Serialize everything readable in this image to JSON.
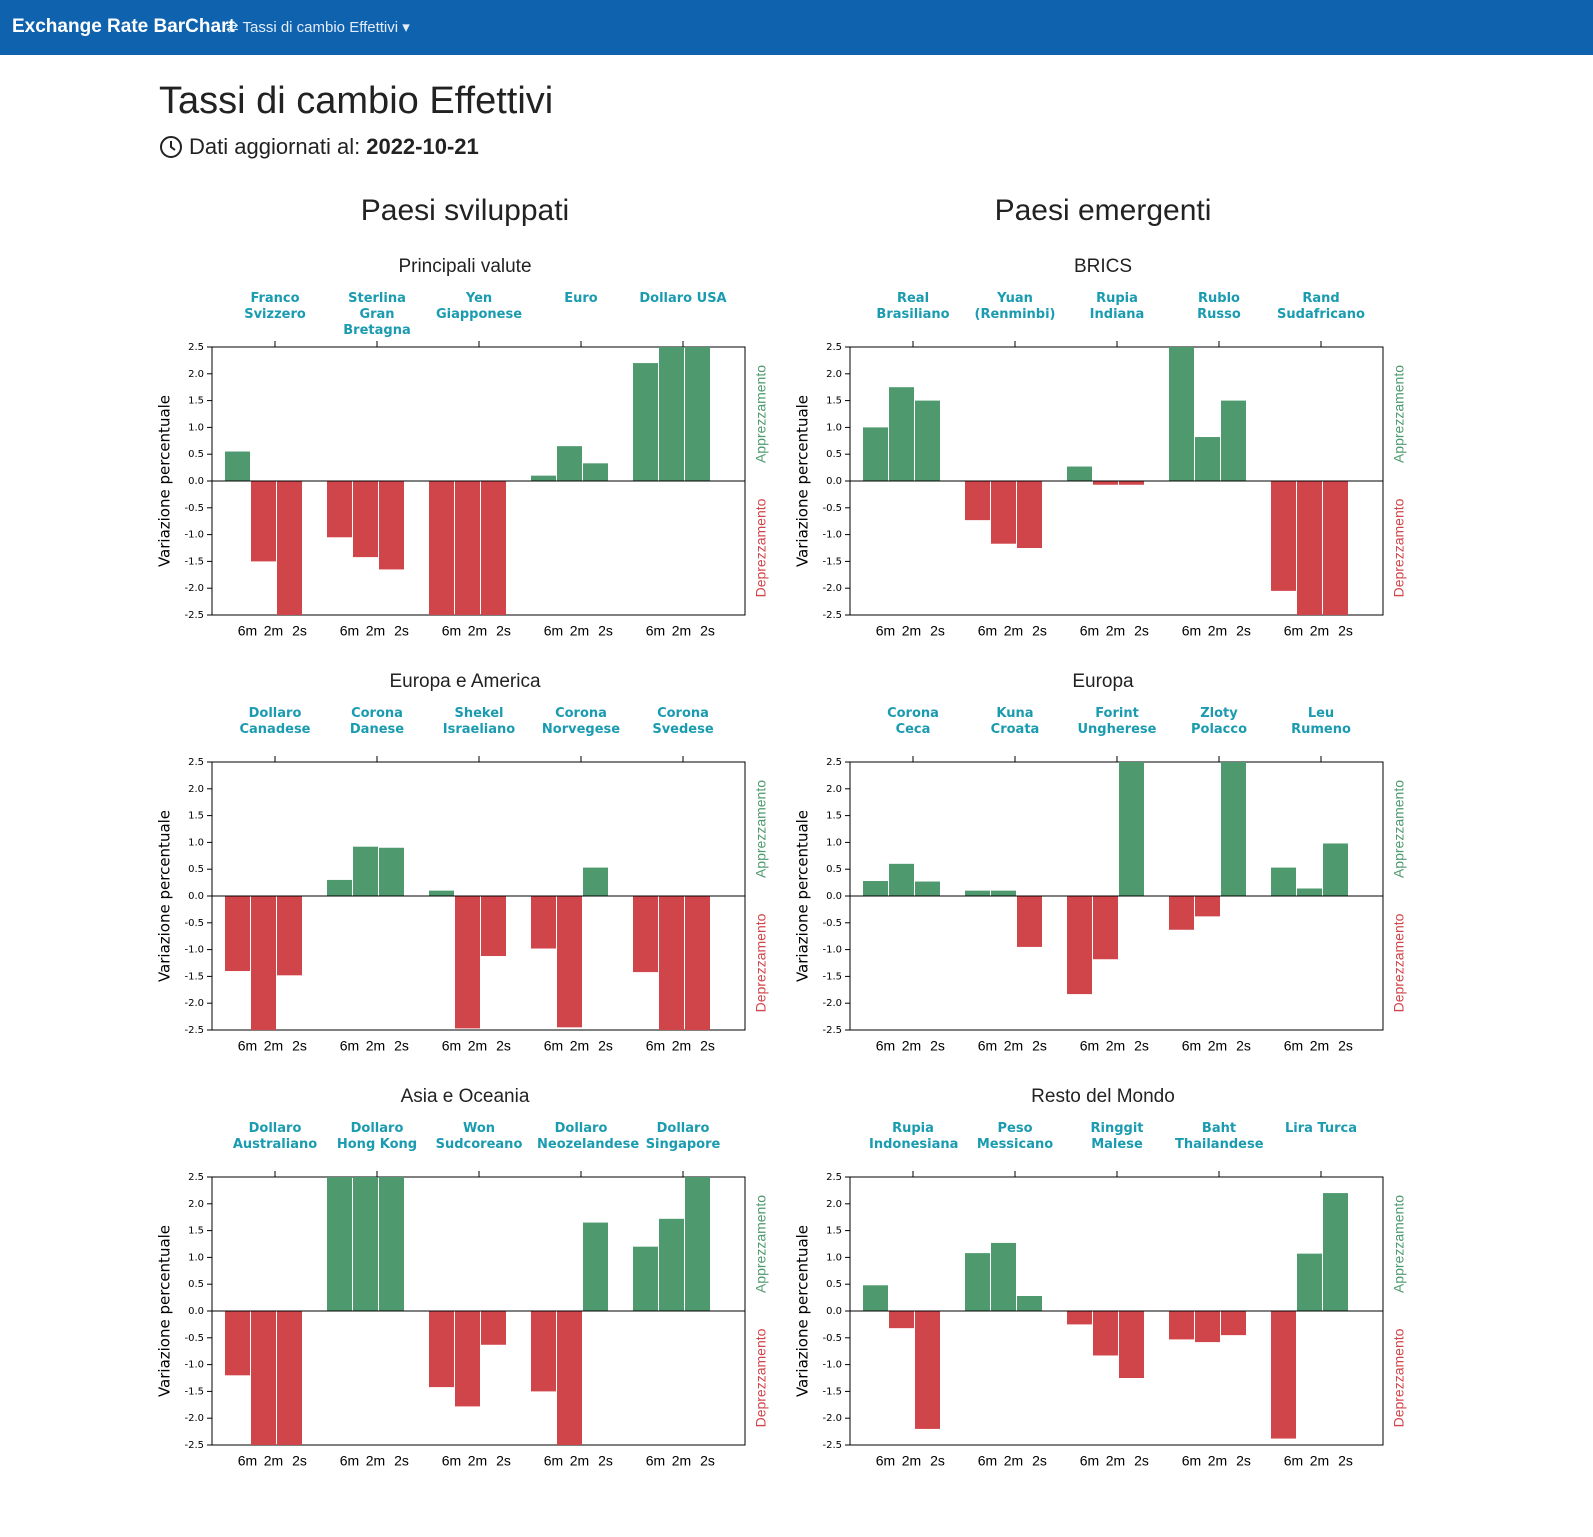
{
  "navbar": {
    "brand": "Exchange Rate BarChart",
    "menu": "Tassi di cambio Effettivi"
  },
  "header": {
    "title": "Tassi di cambio Effettivi",
    "updated_label": "Dati aggiornati al:",
    "updated_date": "2022-10-21"
  },
  "columns": [
    "Paesi sviluppati",
    "Paesi emergenti"
  ],
  "chart_data": [
    {
      "type": "bar",
      "title": "Principali valute",
      "ylabel": "Variazione percentuale",
      "annotations": [
        "Apprezzamento",
        "Deprezzamento"
      ],
      "positive_color": "#4e9a6e",
      "negative_color": "#d0454a",
      "ylim": [
        -2.5,
        2.5
      ],
      "yticks": [
        2.5,
        {
          "value": 2,
          "label": "2.0"
        },
        1.5,
        {
          "value": 1,
          "label": "1.0"
        },
        0.5,
        {
          "value": 0,
          "label": "0.0"
        },
        -0.5,
        {
          "value": -1,
          "label": "-1.0"
        },
        -1.5,
        {
          "value": -2,
          "label": "-2.0"
        },
        -2.5
      ],
      "categories": [
        "Franco Svizzero",
        "Sterlina Gran Bretagna",
        "Yen Giapponese",
        "Euro",
        "Dollaro USA"
      ],
      "series": [
        {
          "name": "6m",
          "values": [
            0.55,
            -1.05,
            -2.5,
            0.1,
            2.2
          ]
        },
        {
          "name": "2m",
          "values": [
            -1.5,
            -1.42,
            -2.5,
            0.65,
            2.5
          ]
        },
        {
          "name": "2s",
          "values": [
            -2.5,
            -1.65,
            -2.5,
            0.33,
            2.5
          ]
        }
      ]
    },
    {
      "type": "bar",
      "title": "BRICS",
      "ylabel": "Variazione percentuale",
      "annotations": [
        "Apprezzamento",
        "Deprezzamento"
      ],
      "positive_color": "#4e9a6e",
      "negative_color": "#d0454a",
      "ylim": [
        -2.5,
        2.5
      ],
      "yticks": [
        2.5,
        {
          "value": 2,
          "label": "2.0"
        },
        1.5,
        {
          "value": 1,
          "label": "1.0"
        },
        0.5,
        {
          "value": 0,
          "label": "0.0"
        },
        -0.5,
        {
          "value": -1,
          "label": "-1.0"
        },
        -1.5,
        {
          "value": -2,
          "label": "-2.0"
        },
        -2.5
      ],
      "categories": [
        "Real Brasiliano",
        "Yuan (Renminbi)",
        "Rupia Indiana",
        "Rublo Russo",
        "Rand Sudafricano"
      ],
      "series": [
        {
          "name": "6m",
          "values": [
            1.0,
            -0.73,
            0.27,
            2.5,
            -2.05
          ]
        },
        {
          "name": "2m",
          "values": [
            1.75,
            -1.17,
            -0.07,
            0.82,
            -2.5
          ]
        },
        {
          "name": "2s",
          "values": [
            1.5,
            -1.25,
            -0.07,
            1.5,
            -2.5
          ]
        }
      ]
    },
    {
      "type": "bar",
      "title": "Europa e America",
      "ylabel": "Variazione percentuale",
      "annotations": [
        "Apprezzamento",
        "Deprezzamento"
      ],
      "positive_color": "#4e9a6e",
      "negative_color": "#d0454a",
      "ylim": [
        -2.5,
        2.5
      ],
      "yticks": [
        2.5,
        {
          "value": 2,
          "label": "2.0"
        },
        1.5,
        {
          "value": 1,
          "label": "1.0"
        },
        0.5,
        {
          "value": 0,
          "label": "0.0"
        },
        -0.5,
        {
          "value": -1,
          "label": "-1.0"
        },
        -1.5,
        {
          "value": -2,
          "label": "-2.0"
        },
        -2.5
      ],
      "categories": [
        "Dollaro Canadese",
        "Corona Danese",
        "Shekel Israeliano",
        "Corona Norvegese",
        "Corona Svedese"
      ],
      "series": [
        {
          "name": "6m",
          "values": [
            -1.4,
            0.3,
            0.1,
            -0.98,
            -1.42
          ]
        },
        {
          "name": "2m",
          "values": [
            -2.5,
            0.92,
            -2.47,
            -2.45,
            -2.5
          ]
        },
        {
          "name": "2s",
          "values": [
            -1.48,
            0.9,
            -1.12,
            0.53,
            -2.5
          ]
        }
      ]
    },
    {
      "type": "bar",
      "title": "Europa",
      "ylabel": "Variazione percentuale",
      "annotations": [
        "Apprezzamento",
        "Deprezzamento"
      ],
      "positive_color": "#4e9a6e",
      "negative_color": "#d0454a",
      "ylim": [
        -2.5,
        2.5
      ],
      "yticks": [
        2.5,
        {
          "value": 2,
          "label": "2.0"
        },
        1.5,
        {
          "value": 1,
          "label": "1.0"
        },
        0.5,
        {
          "value": 0,
          "label": "0.0"
        },
        -0.5,
        {
          "value": -1,
          "label": "-1.0"
        },
        -1.5,
        {
          "value": -2,
          "label": "-2.0"
        },
        -2.5
      ],
      "categories": [
        "Corona Ceca",
        "Kuna Croata",
        "Forint Ungherese",
        "Zloty Polacco",
        "Leu Rumeno"
      ],
      "series": [
        {
          "name": "6m",
          "values": [
            0.28,
            0.1,
            -1.83,
            -0.63,
            0.53
          ]
        },
        {
          "name": "2m",
          "values": [
            0.6,
            0.1,
            -1.18,
            -0.38,
            0.14
          ]
        },
        {
          "name": "2s",
          "values": [
            0.27,
            -0.95,
            2.5,
            2.5,
            0.98
          ]
        }
      ]
    },
    {
      "type": "bar",
      "title": "Asia e Oceania",
      "ylabel": "Variazione percentuale",
      "annotations": [
        "Apprezzamento",
        "Deprezzamento"
      ],
      "positive_color": "#4e9a6e",
      "negative_color": "#d0454a",
      "ylim": [
        -2.5,
        2.5
      ],
      "yticks": [
        2.5,
        {
          "value": 2,
          "label": "2.0"
        },
        1.5,
        {
          "value": 1,
          "label": "1.0"
        },
        0.5,
        {
          "value": 0,
          "label": "0.0"
        },
        -0.5,
        {
          "value": -1,
          "label": "-1.0"
        },
        -1.5,
        {
          "value": -2,
          "label": "-2.0"
        },
        -2.5
      ],
      "categories": [
        "Dollaro Australiano",
        "Dollaro Hong Kong",
        "Won Sudcoreano",
        "Dollaro Neozelandese",
        "Dollaro Singapore"
      ],
      "series": [
        {
          "name": "6m",
          "values": [
            -1.2,
            2.5,
            -1.42,
            -1.5,
            1.2
          ]
        },
        {
          "name": "2m",
          "values": [
            -2.5,
            2.5,
            -1.78,
            -2.5,
            1.72
          ]
        },
        {
          "name": "2s",
          "values": [
            -2.5,
            2.5,
            -0.63,
            1.65,
            2.5
          ]
        }
      ]
    },
    {
      "type": "bar",
      "title": "Resto del Mondo",
      "ylabel": "Variazione percentuale",
      "annotations": [
        "Apprezzamento",
        "Deprezzamento"
      ],
      "positive_color": "#4e9a6e",
      "negative_color": "#d0454a",
      "ylim": [
        -2.5,
        2.5
      ],
      "yticks": [
        2.5,
        {
          "value": 2,
          "label": "2.0"
        },
        1.5,
        {
          "value": 1,
          "label": "1.0"
        },
        0.5,
        {
          "value": 0,
          "label": "0.0"
        },
        -0.5,
        {
          "value": -1,
          "label": "-1.0"
        },
        -1.5,
        {
          "value": -2,
          "label": "-2.0"
        },
        -2.5
      ],
      "categories": [
        "Rupia Indonesiana",
        "Peso Messicano",
        "Ringgit Malese",
        "Baht Thailandese",
        "Lira Turca"
      ],
      "series": [
        {
          "name": "6m",
          "values": [
            0.48,
            1.08,
            -0.25,
            -0.53,
            -2.38
          ]
        },
        {
          "name": "2m",
          "values": [
            -0.32,
            1.27,
            -0.83,
            -0.58,
            1.07
          ]
        },
        {
          "name": "2s",
          "values": [
            -2.2,
            0.28,
            -1.25,
            -0.45,
            2.2
          ]
        }
      ]
    }
  ]
}
